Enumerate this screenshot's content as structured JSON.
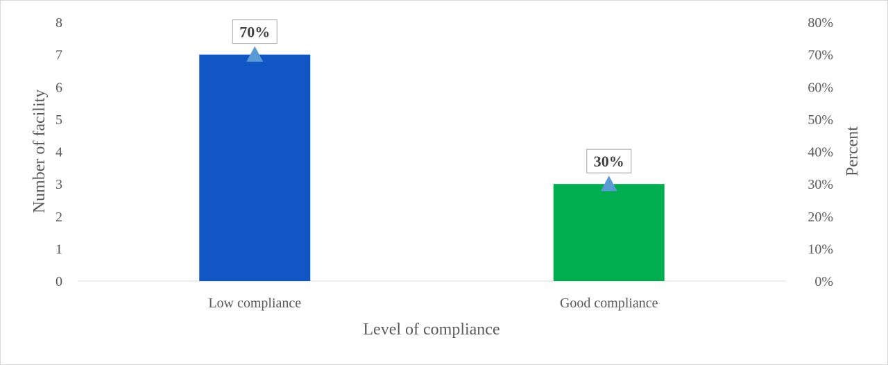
{
  "chart_data": {
    "type": "bar",
    "categories": [
      "Low compliance",
      "Good compliance"
    ],
    "series": [
      {
        "values": [
          7,
          3
        ],
        "colors": [
          "#1057c5",
          "#00ae4f"
        ]
      },
      {
        "values": [
          70,
          30
        ],
        "marker": "triangle",
        "color": "#5b9bd5",
        "axis": "secondary"
      }
    ],
    "data_labels": [
      "70%",
      "30%"
    ],
    "xlabel": "Level of compliance",
    "ylabel": "Number of facility",
    "y2label": "Percent",
    "ylim": [
      0,
      8
    ],
    "y2lim": [
      0,
      80
    ],
    "y_ticks": [
      "0",
      "1",
      "2",
      "3",
      "4",
      "5",
      "6",
      "7",
      "8"
    ],
    "y2_ticks": [
      "0%",
      "10%",
      "20%",
      "30%",
      "40%",
      "50%",
      "60%",
      "70%",
      "80%"
    ],
    "grid": false,
    "legend": "none"
  }
}
